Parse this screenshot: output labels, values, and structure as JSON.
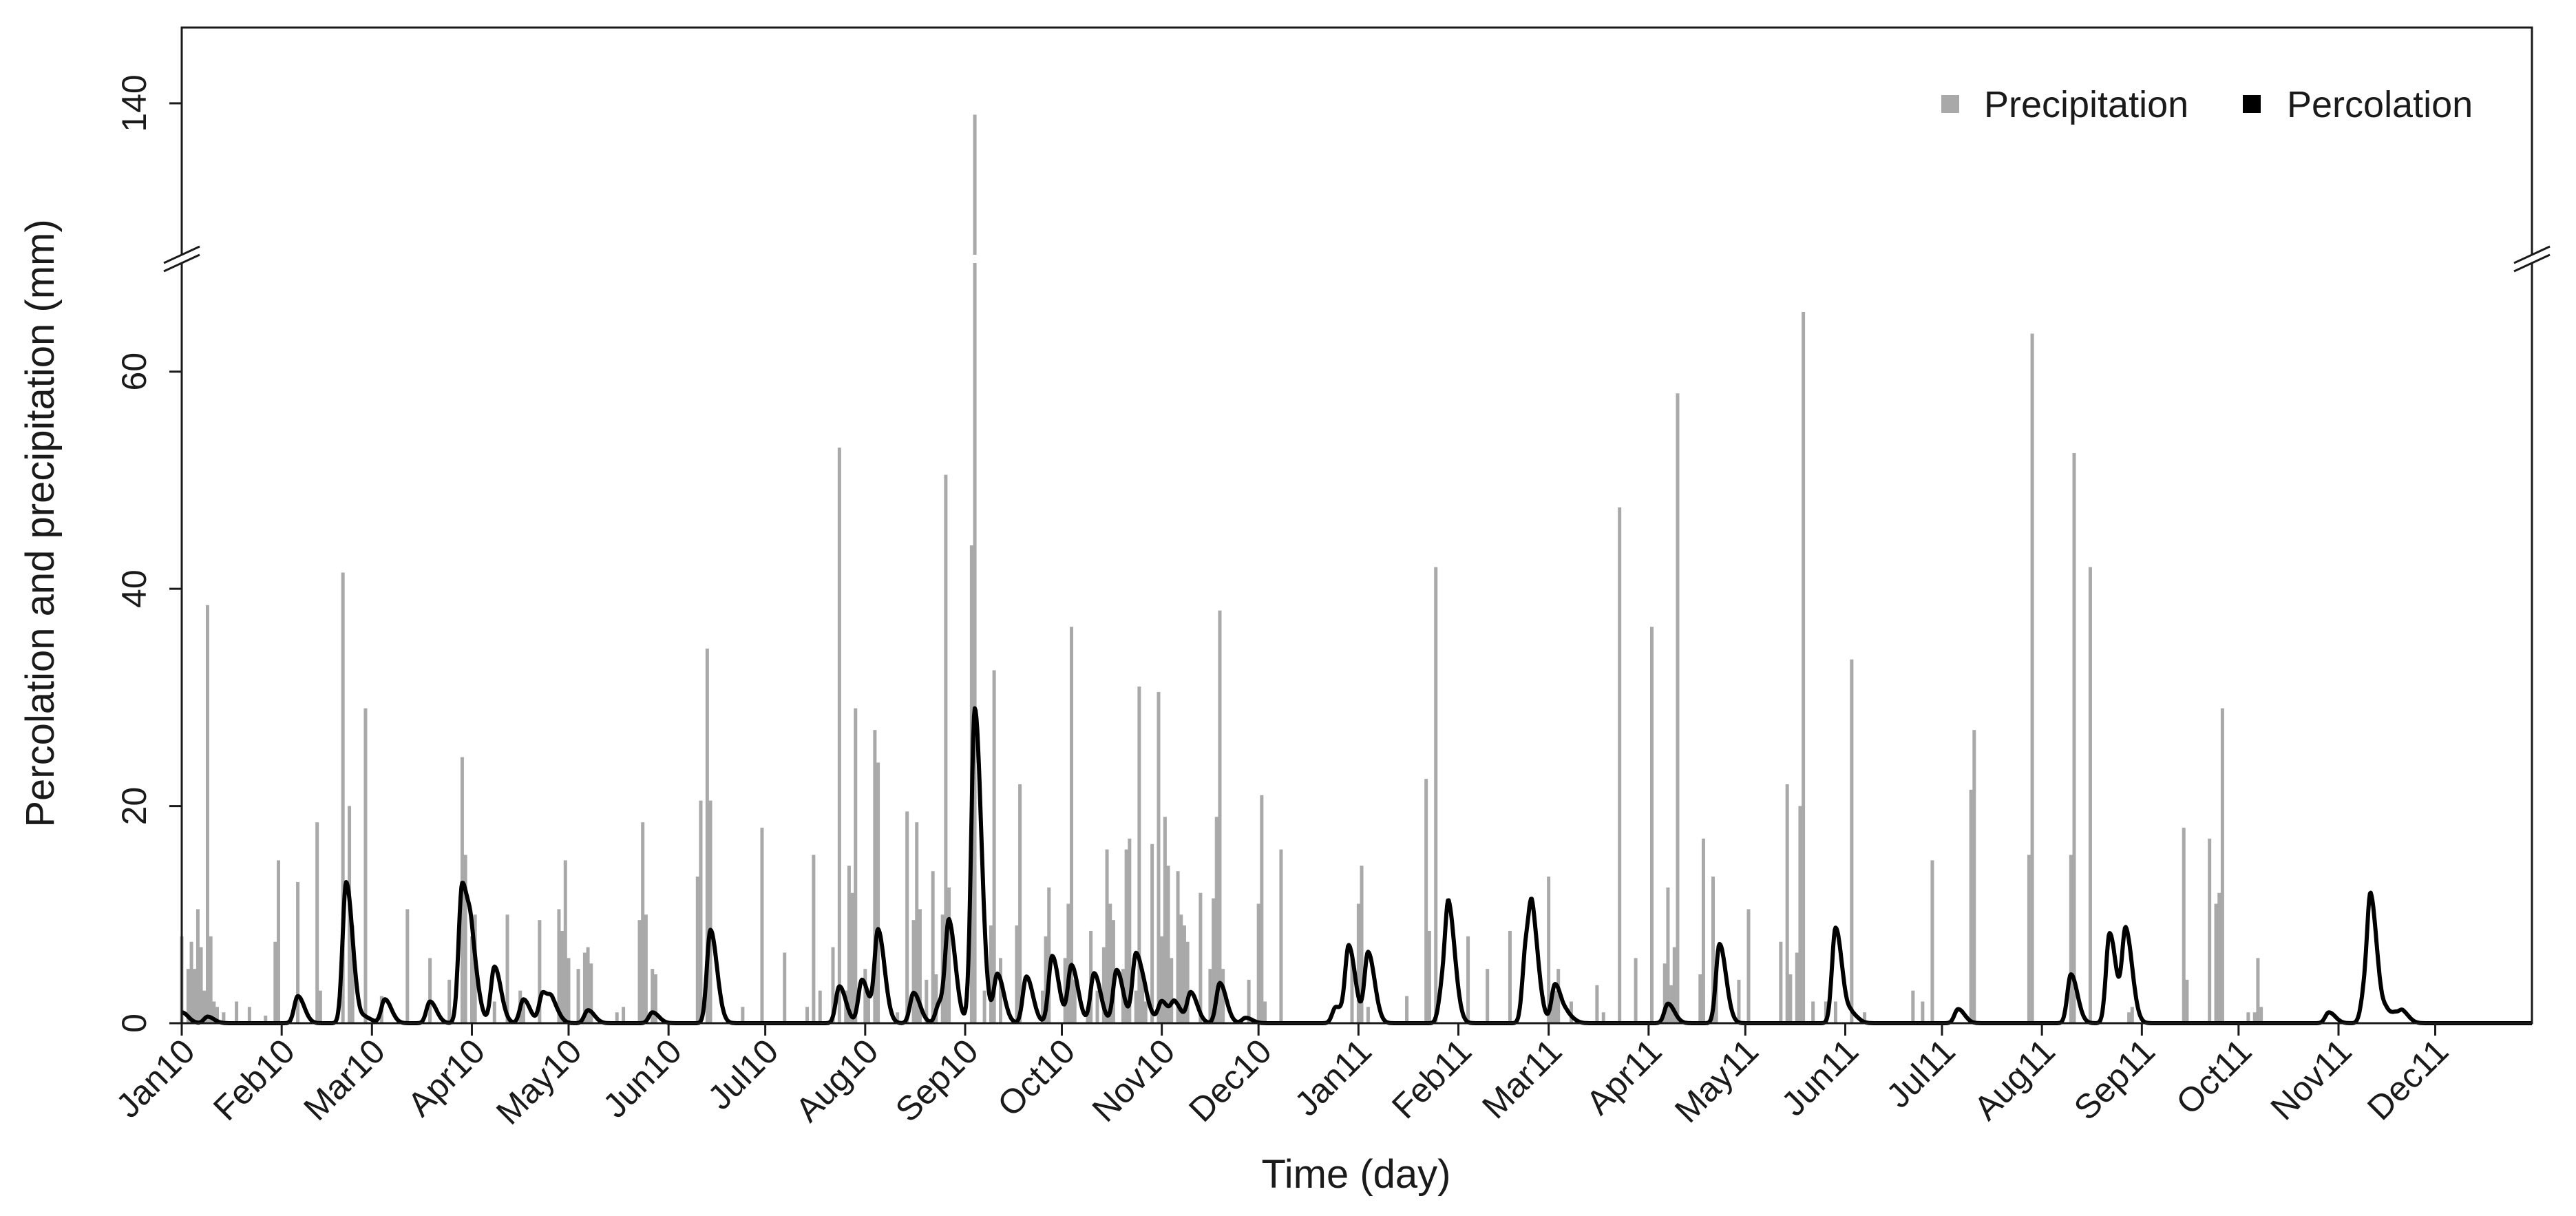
{
  "colors": {
    "precipitation": "#a9a9a9",
    "percolation": "#000000",
    "frame": "#1a1a1a"
  },
  "chart_data": {
    "type": "bar",
    "xlabel": "Time (day)",
    "ylabel": "Percolation and precipitation (mm)",
    "ylim_lower": [
      0,
      70
    ],
    "ylim_upper": [
      120,
      150
    ],
    "y_ticks": [
      "0",
      "20",
      "40",
      "60",
      "140"
    ],
    "y_ticks_lower": [
      0,
      20,
      40,
      60
    ],
    "y_ticks_upper": [
      140
    ],
    "axis_break": true,
    "grid": false,
    "legend_position": "top-right",
    "legend": [
      "Precipitation",
      "Percolation"
    ],
    "x_tick_labels": [
      "Jan10",
      "Feb10",
      "Mar10",
      "Apr10",
      "May10",
      "Jun10",
      "Jul10",
      "Aug10",
      "Sep10",
      "Oct10",
      "Nov10",
      "Dec10",
      "Jan11",
      "Feb11",
      "Mar11",
      "Apr11",
      "May11",
      "Jun11",
      "Jul11",
      "Aug11",
      "Sep11",
      "Oct11",
      "Nov11",
      "Dec11"
    ],
    "x_tick_days": [
      1,
      32,
      60,
      91,
      121,
      152,
      182,
      213,
      244,
      274,
      305,
      335,
      366,
      397,
      425,
      456,
      486,
      517,
      547,
      578,
      609,
      639,
      670,
      700
    ],
    "x_range_days": [
      1,
      730
    ],
    "series": [
      {
        "name": "Precipitation",
        "style": "bars",
        "points": [
          [
            1,
            8
          ],
          [
            3,
            5
          ],
          [
            4,
            7.5
          ],
          [
            5,
            5
          ],
          [
            6,
            10.5
          ],
          [
            7,
            7
          ],
          [
            8,
            3
          ],
          [
            9,
            38.5
          ],
          [
            10,
            8
          ],
          [
            11,
            2
          ],
          [
            12,
            1.5
          ],
          [
            14,
            1
          ],
          [
            18,
            2
          ],
          [
            22,
            1.5
          ],
          [
            27,
            0.7
          ],
          [
            30,
            7.5
          ],
          [
            31,
            15
          ],
          [
            37,
            13
          ],
          [
            43,
            18.5
          ],
          [
            44,
            3
          ],
          [
            51,
            41.5
          ],
          [
            53,
            20
          ],
          [
            54,
            9
          ],
          [
            58,
            29
          ],
          [
            63,
            2.5
          ],
          [
            71,
            10.5
          ],
          [
            78,
            6
          ],
          [
            84,
            4
          ],
          [
            88,
            24.5
          ],
          [
            89,
            15.5
          ],
          [
            91,
            8
          ],
          [
            92,
            10
          ],
          [
            98,
            2
          ],
          [
            102,
            10
          ],
          [
            106,
            3
          ],
          [
            107,
            2
          ],
          [
            112,
            9.5
          ],
          [
            118,
            10.5
          ],
          [
            119,
            8.5
          ],
          [
            120,
            15
          ],
          [
            121,
            6
          ],
          [
            124,
            5
          ],
          [
            126,
            6.5
          ],
          [
            127,
            7
          ],
          [
            128,
            5.5
          ],
          [
            136,
            1
          ],
          [
            138,
            1.5
          ],
          [
            143,
            9.5
          ],
          [
            144,
            18.5
          ],
          [
            145,
            10
          ],
          [
            147,
            5
          ],
          [
            148,
            4.5
          ],
          [
            161,
            13.5
          ],
          [
            162,
            20.5
          ],
          [
            164,
            34.5
          ],
          [
            165,
            20.5
          ],
          [
            175,
            1.5
          ],
          [
            181,
            18
          ],
          [
            188,
            6.5
          ],
          [
            195,
            1.5
          ],
          [
            197,
            15.5
          ],
          [
            199,
            3
          ],
          [
            203,
            7
          ],
          [
            205,
            53
          ],
          [
            207,
            3
          ],
          [
            208,
            14.5
          ],
          [
            209,
            12
          ],
          [
            210,
            29
          ],
          [
            213,
            5
          ],
          [
            214,
            3
          ],
          [
            216,
            27
          ],
          [
            217,
            24
          ],
          [
            223,
            1
          ],
          [
            226,
            19.5
          ],
          [
            228,
            9.5
          ],
          [
            229,
            18.5
          ],
          [
            230,
            10.5
          ],
          [
            232,
            4
          ],
          [
            234,
            14
          ],
          [
            235,
            4.5
          ],
          [
            237,
            10
          ],
          [
            238,
            50.5
          ],
          [
            239,
            12.5
          ],
          [
            246,
            44
          ],
          [
            247,
            138.5
          ],
          [
            250,
            3
          ],
          [
            252,
            9
          ],
          [
            253,
            32.5
          ],
          [
            255,
            6
          ],
          [
            260,
            9
          ],
          [
            261,
            22
          ],
          [
            268,
            3
          ],
          [
            269,
            8
          ],
          [
            270,
            12.5
          ],
          [
            275,
            6
          ],
          [
            276,
            11
          ],
          [
            277,
            36.5
          ],
          [
            278,
            4
          ],
          [
            282,
            1.5
          ],
          [
            283,
            8.5
          ],
          [
            285,
            3
          ],
          [
            287,
            7
          ],
          [
            288,
            16
          ],
          [
            289,
            11
          ],
          [
            290,
            9.5
          ],
          [
            293,
            5
          ],
          [
            294,
            16
          ],
          [
            295,
            17
          ],
          [
            297,
            3
          ],
          [
            298,
            31
          ],
          [
            299,
            5
          ],
          [
            300,
            2
          ],
          [
            302,
            16.5
          ],
          [
            304,
            30.5
          ],
          [
            305,
            8
          ],
          [
            306,
            19
          ],
          [
            307,
            14.5
          ],
          [
            308,
            6
          ],
          [
            310,
            14
          ],
          [
            311,
            10
          ],
          [
            312,
            9
          ],
          [
            313,
            7.5
          ],
          [
            317,
            12
          ],
          [
            320,
            5
          ],
          [
            321,
            11.5
          ],
          [
            322,
            19
          ],
          [
            323,
            38
          ],
          [
            324,
            5
          ],
          [
            332,
            4
          ],
          [
            335,
            11
          ],
          [
            336,
            21
          ],
          [
            337,
            2
          ],
          [
            342,
            16
          ],
          [
            364,
            6
          ],
          [
            366,
            11
          ],
          [
            367,
            14.5
          ],
          [
            369,
            1.5
          ],
          [
            381,
            2.5
          ],
          [
            387,
            22.5
          ],
          [
            388,
            8.5
          ],
          [
            390,
            42
          ],
          [
            400,
            8
          ],
          [
            406,
            5
          ],
          [
            413,
            8.5
          ],
          [
            425,
            13.5
          ],
          [
            426,
            2.5
          ],
          [
            427,
            3
          ],
          [
            428,
            5
          ],
          [
            432,
            2
          ],
          [
            440,
            3.5
          ],
          [
            442,
            1
          ],
          [
            447,
            47.5
          ],
          [
            452,
            6
          ],
          [
            457,
            36.5
          ],
          [
            461,
            5.5
          ],
          [
            462,
            12.5
          ],
          [
            463,
            3.5
          ],
          [
            464,
            7
          ],
          [
            465,
            58
          ],
          [
            472,
            4.5
          ],
          [
            473,
            17
          ],
          [
            476,
            13.5
          ],
          [
            477,
            5
          ],
          [
            484,
            4
          ],
          [
            487,
            10.5
          ],
          [
            497,
            7.5
          ],
          [
            499,
            22
          ],
          [
            500,
            4.5
          ],
          [
            502,
            6.5
          ],
          [
            503,
            20
          ],
          [
            504,
            65.5
          ],
          [
            507,
            2
          ],
          [
            511,
            2
          ],
          [
            514,
            2
          ],
          [
            519,
            33.5
          ],
          [
            523,
            1
          ],
          [
            538,
            3
          ],
          [
            541,
            2
          ],
          [
            544,
            15
          ],
          [
            556,
            21.5
          ],
          [
            557,
            27
          ],
          [
            574,
            15.5
          ],
          [
            575,
            63.5
          ],
          [
            587,
            15.5
          ],
          [
            588,
            52.5
          ],
          [
            593,
            42
          ],
          [
            605,
            1
          ],
          [
            606,
            1.5
          ],
          [
            622,
            18
          ],
          [
            623,
            4
          ],
          [
            630,
            17
          ],
          [
            632,
            11
          ],
          [
            633,
            12
          ],
          [
            634,
            29
          ],
          [
            642,
            1
          ],
          [
            644,
            1
          ],
          [
            645,
            6
          ],
          [
            646,
            1.5
          ]
        ]
      },
      {
        "name": "Percolation",
        "style": "line",
        "peaks": [
          [
            1,
            1
          ],
          [
            9,
            0.6
          ],
          [
            37,
            2.5
          ],
          [
            52,
            13
          ],
          [
            58,
            0.5
          ],
          [
            64,
            2.2
          ],
          [
            78,
            2
          ],
          [
            88,
            12.8
          ],
          [
            91,
            5
          ],
          [
            98,
            5.2
          ],
          [
            107,
            2.2
          ],
          [
            113,
            2.8
          ],
          [
            116,
            1.5
          ],
          [
            127,
            1.2
          ],
          [
            147,
            1
          ],
          [
            165,
            8.6
          ],
          [
            205,
            3.4
          ],
          [
            212,
            4
          ],
          [
            217,
            8.5
          ],
          [
            228,
            2.8
          ],
          [
            236,
            1.8
          ],
          [
            239,
            9
          ],
          [
            247,
            29
          ],
          [
            254,
            4.5
          ],
          [
            263,
            4.3
          ],
          [
            271,
            6.2
          ],
          [
            277,
            5.3
          ],
          [
            284,
            4.6
          ],
          [
            291,
            4.9
          ],
          [
            297,
            6.4
          ],
          [
            300,
            1.2
          ],
          [
            305,
            2
          ],
          [
            309,
            1.8
          ],
          [
            314,
            2.8
          ],
          [
            323,
            3.7
          ],
          [
            331,
            0.5
          ],
          [
            359,
            1.5
          ],
          [
            363,
            7
          ],
          [
            369,
            6.5
          ],
          [
            392,
            3
          ],
          [
            394,
            9.5
          ],
          [
            418,
            6.8
          ],
          [
            420,
            7
          ],
          [
            427,
            3.6
          ],
          [
            431,
            0.6
          ],
          [
            462,
            1.8
          ],
          [
            478,
            7.3
          ],
          [
            514,
            8.8
          ],
          [
            519,
            0.8
          ],
          [
            552,
            1.3
          ],
          [
            587,
            4.5
          ],
          [
            599,
            8.3
          ],
          [
            604,
            8.5
          ],
          [
            667,
            1
          ],
          [
            678,
            2.5
          ],
          [
            680,
            10.5
          ],
          [
            685,
            1
          ],
          [
            688,
            0.6
          ],
          [
            690,
            0.8
          ]
        ]
      }
    ]
  }
}
